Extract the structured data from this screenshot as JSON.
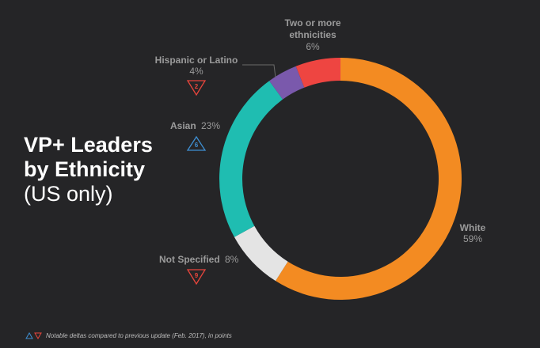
{
  "title": {
    "line1": "VP+ Leaders",
    "line2": "by Ethnicity",
    "line3": "(US only)"
  },
  "colors": {
    "background": "#252527",
    "label": "#9b9b9b",
    "delta_up": "#3f8fd2",
    "delta_down": "#e8453c"
  },
  "chart_data": {
    "type": "pie",
    "variant": "donut",
    "categories": [
      "White",
      "Not Specified",
      "Asian",
      "Hispanic or Latino",
      "Two or more ethnicities"
    ],
    "values": [
      59,
      8,
      23,
      4,
      6
    ],
    "unit": "%",
    "colors": [
      "#f38b22",
      "#e4e4e4",
      "#1fbdb1",
      "#7a59ac",
      "#ee4541"
    ],
    "deltas": [
      {
        "category": "Not Specified",
        "value": "9",
        "direction": "down"
      },
      {
        "category": "Asian",
        "value": "6",
        "direction": "up"
      },
      {
        "category": "Hispanic or Latino",
        "value": "2",
        "direction": "down"
      }
    ],
    "labels": [
      {
        "name": "White",
        "pct": "59%"
      },
      {
        "name": "Not Specified",
        "pct": "8%"
      },
      {
        "name": "Asian",
        "pct": "23%"
      },
      {
        "name": "Hispanic or Latino",
        "pct": "4%"
      },
      {
        "name_line1": "Two or more",
        "name_line2": "ethnicities",
        "pct": "6%"
      }
    ]
  },
  "footnote": "Notable deltas compared to previous update (Feb. 2017), in points"
}
